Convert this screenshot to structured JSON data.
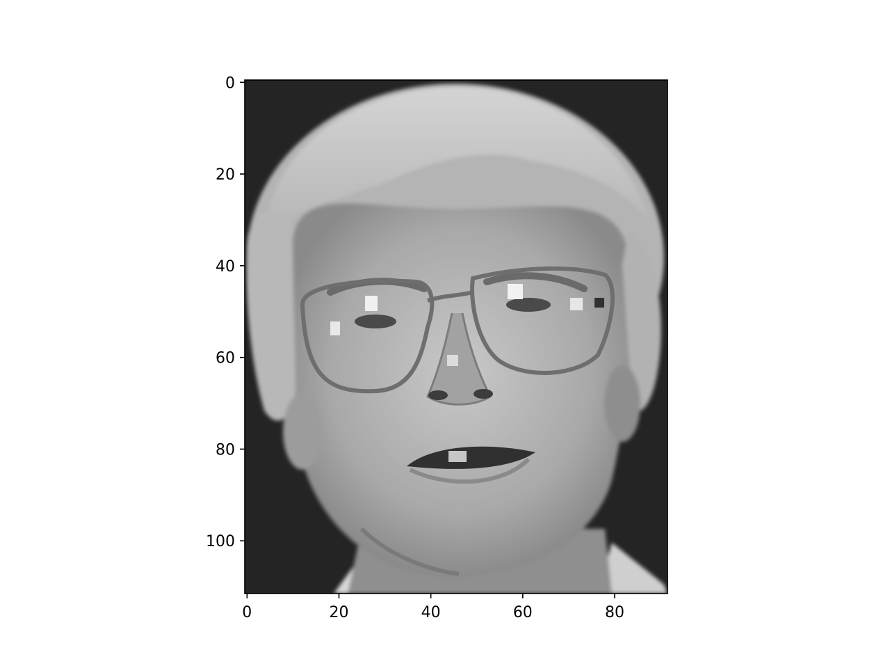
{
  "image": {
    "subject": "face-portrait",
    "colormap": "gray",
    "frame_color": "#000000",
    "background_color": "#ffffff"
  },
  "axes": {
    "x_ticks": [
      {
        "value": 0,
        "label": "0"
      },
      {
        "value": 20,
        "label": "20"
      },
      {
        "value": 40,
        "label": "40"
      },
      {
        "value": 60,
        "label": "60"
      },
      {
        "value": 80,
        "label": "80"
      }
    ],
    "y_ticks": [
      {
        "value": 0,
        "label": "0"
      },
      {
        "value": 20,
        "label": "20"
      },
      {
        "value": 40,
        "label": "40"
      },
      {
        "value": 60,
        "label": "60"
      },
      {
        "value": 80,
        "label": "80"
      },
      {
        "value": 100,
        "label": "100"
      }
    ],
    "x_range": [
      -0.5,
      91.5
    ],
    "y_range": [
      -0.5,
      111.5
    ],
    "y_inverted": true
  }
}
